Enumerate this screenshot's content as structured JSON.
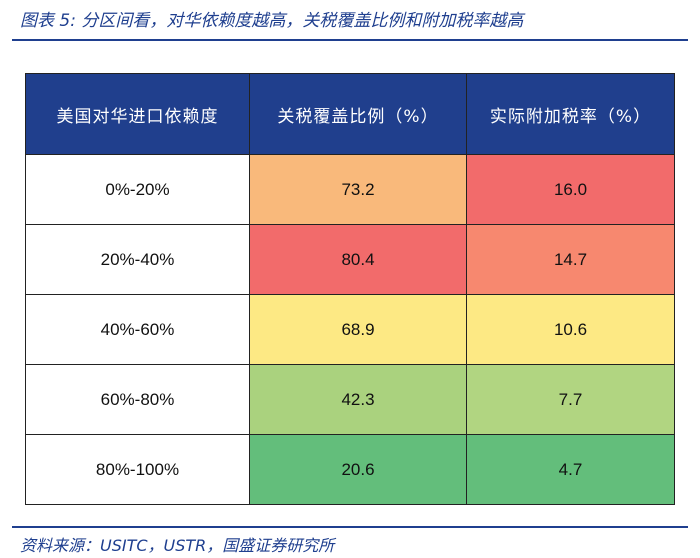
{
  "header": {
    "title": "图表 5:  分区间看，对华依赖度越高，关税覆盖比例和附加税率越高"
  },
  "table": {
    "columns": [
      "美国对华进口依赖度",
      "关税覆盖比例（%）",
      "实际附加税率（%）"
    ],
    "rows": [
      [
        "0%-20%",
        "73.2",
        "16.0"
      ],
      [
        "20%-40%",
        "80.4",
        "14.7"
      ],
      [
        "40%-60%",
        "68.9",
        "10.6"
      ],
      [
        "60%-80%",
        "42.3",
        "7.7"
      ],
      [
        "80%-100%",
        "20.6",
        "4.7"
      ]
    ],
    "colors": [
      [
        "#ffffff",
        "#f9b97b",
        "#f26b6b"
      ],
      [
        "#ffffff",
        "#f26b6b",
        "#f7886f"
      ],
      [
        "#ffffff",
        "#fde984",
        "#fde984"
      ],
      [
        "#ffffff",
        "#aad27e",
        "#b1d581"
      ],
      [
        "#ffffff",
        "#63be7b",
        "#63be7b"
      ]
    ]
  },
  "footer": {
    "source": "资料来源：USITC，USTR，国盛证券研究所"
  }
}
